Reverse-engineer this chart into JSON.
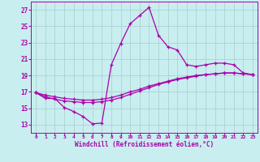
{
  "background_color": "#c8eef0",
  "grid_color": "#aacccc",
  "line_color": "#aa00aa",
  "spine_color": "#aa00aa",
  "xlabel": "Windchill (Refroidissement éolien,°C)",
  "xlim": [
    -0.5,
    23.5
  ],
  "ylim": [
    12,
    28
  ],
  "yticks": [
    13,
    15,
    17,
    19,
    21,
    23,
    25,
    27
  ],
  "xticks": [
    0,
    1,
    2,
    3,
    4,
    5,
    6,
    7,
    8,
    9,
    10,
    11,
    12,
    13,
    14,
    15,
    16,
    17,
    18,
    19,
    20,
    21,
    22,
    23
  ],
  "line1_x": [
    0,
    1,
    2,
    3,
    4,
    5,
    6,
    7,
    8,
    9,
    10,
    11,
    12,
    13,
    14,
    15,
    16,
    17,
    18,
    19,
    20,
    21,
    22,
    23
  ],
  "line1_y": [
    16.9,
    16.2,
    16.2,
    15.1,
    14.6,
    14.0,
    13.1,
    13.2,
    20.3,
    22.9,
    25.3,
    26.3,
    27.3,
    23.9,
    22.5,
    22.1,
    20.3,
    20.1,
    20.3,
    20.5,
    20.5,
    20.3,
    19.3,
    19.1
  ],
  "line2_x": [
    0,
    1,
    2,
    3,
    4,
    5,
    6,
    7,
    8,
    9,
    10,
    11,
    12,
    13,
    14,
    15,
    16,
    17,
    18,
    19,
    20,
    21,
    22,
    23
  ],
  "line2_y": [
    16.9,
    16.4,
    16.1,
    15.9,
    15.8,
    15.7,
    15.7,
    15.8,
    16.0,
    16.3,
    16.7,
    17.1,
    17.5,
    17.9,
    18.2,
    18.5,
    18.7,
    18.9,
    19.1,
    19.2,
    19.3,
    19.3,
    19.2,
    19.1
  ],
  "line3_x": [
    0,
    1,
    2,
    3,
    4,
    5,
    6,
    7,
    8,
    9,
    10,
    11,
    12,
    13,
    14,
    15,
    16,
    17,
    18,
    19,
    20,
    21,
    22,
    23
  ],
  "line3_y": [
    16.9,
    16.6,
    16.4,
    16.2,
    16.1,
    16.0,
    16.0,
    16.1,
    16.3,
    16.6,
    17.0,
    17.3,
    17.7,
    18.0,
    18.3,
    18.6,
    18.8,
    19.0,
    19.1,
    19.2,
    19.3,
    19.3,
    19.2,
    19.1
  ]
}
